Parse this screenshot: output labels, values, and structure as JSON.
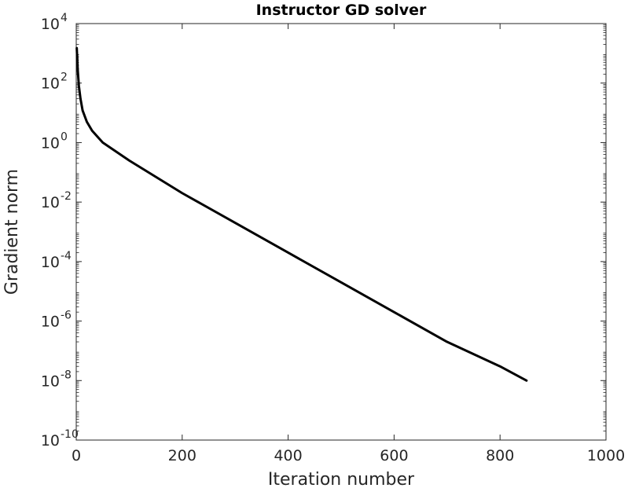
{
  "chart_data": {
    "type": "line",
    "title": "Instructor GD solver",
    "xlabel": "Iteration number",
    "ylabel": "Gradient norm",
    "xlim": [
      0,
      1000
    ],
    "ylim": [
      1e-10,
      10000
    ],
    "yscale": "log",
    "grid": false,
    "x_ticks": [
      {
        "value": 0,
        "label": "0"
      },
      {
        "value": 200,
        "label": "200"
      },
      {
        "value": 400,
        "label": "400"
      },
      {
        "value": 600,
        "label": "600"
      },
      {
        "value": 800,
        "label": "800"
      },
      {
        "value": 1000,
        "label": "1000"
      }
    ],
    "y_ticks": [
      {
        "value": 1e-10,
        "base": "10",
        "exp": "-10"
      },
      {
        "value": 1e-08,
        "base": "10",
        "exp": "-8"
      },
      {
        "value": 1e-06,
        "base": "10",
        "exp": "-6"
      },
      {
        "value": 0.0001,
        "base": "10",
        "exp": "-4"
      },
      {
        "value": 0.01,
        "base": "10",
        "exp": "-2"
      },
      {
        "value": 1,
        "base": "10",
        "exp": "0"
      },
      {
        "value": 100,
        "base": "10",
        "exp": "2"
      },
      {
        "value": 10000,
        "base": "10",
        "exp": "4"
      }
    ],
    "series": [
      {
        "color": "#000000",
        "x": [
          1,
          2,
          3,
          5,
          8,
          12,
          20,
          30,
          50,
          100,
          200,
          300,
          400,
          500,
          600,
          700,
          800,
          850
        ],
        "y": [
          1500,
          600,
          250,
          80,
          30,
          12,
          5,
          2.5,
          1,
          0.25,
          0.02,
          0.002,
          0.0002,
          2e-05,
          2e-06,
          2e-07,
          3e-08,
          1e-08
        ]
      }
    ]
  }
}
